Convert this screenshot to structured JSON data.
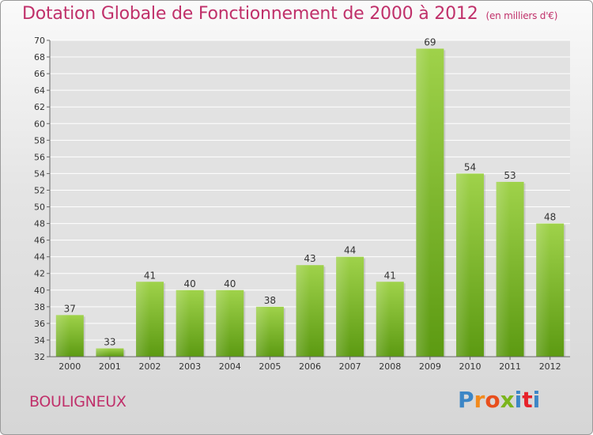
{
  "chart_data": {
    "type": "bar",
    "title": "Dotation Globale de Fonctionnement de 2000 à 2012",
    "subtitle": "(en milliers d'€)",
    "categories": [
      "2000",
      "2001",
      "2002",
      "2003",
      "2004",
      "2005",
      "2006",
      "2007",
      "2008",
      "2009",
      "2010",
      "2011",
      "2012"
    ],
    "values": [
      37,
      33,
      41,
      40,
      40,
      38,
      43,
      44,
      41,
      69,
      54,
      53,
      48
    ],
    "value_labels": [
      "37",
      "33",
      "41",
      "40",
      "40",
      "38",
      "43",
      "44",
      "41",
      "69",
      "54",
      "53",
      "48"
    ],
    "ylim": [
      32,
      70
    ],
    "yticks": [
      "32",
      "34",
      "36",
      "38",
      "40",
      "42",
      "44",
      "46",
      "48",
      "50",
      "52",
      "54",
      "56",
      "58",
      "60",
      "62",
      "64",
      "66",
      "68",
      "70"
    ],
    "xlabel": "",
    "ylabel": "",
    "grid": true,
    "legend": "none",
    "bar_color": "#7cbb2c"
  },
  "commune": "BOULIGNEUX",
  "logo": {
    "letters": [
      "P",
      "r",
      "o",
      "x",
      "i",
      "t",
      "i"
    ]
  }
}
